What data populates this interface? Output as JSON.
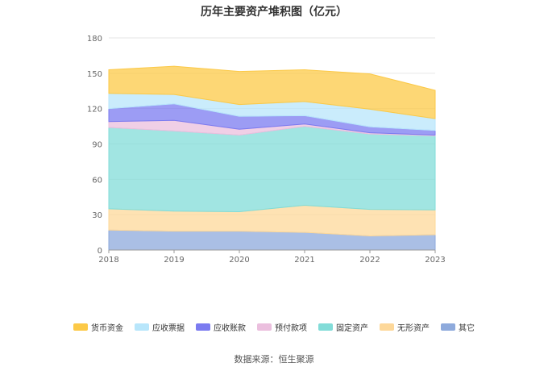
{
  "chart_data": {
    "type": "area",
    "stacked": true,
    "title": "历年主要资产堆积图（亿元）",
    "x": [
      "2018",
      "2019",
      "2020",
      "2021",
      "2022",
      "2023"
    ],
    "ylim": [
      0,
      180
    ],
    "yticks": [
      0,
      30,
      60,
      90,
      120,
      150,
      180
    ],
    "grid": true,
    "legend_position": "bottom",
    "series": [
      {
        "name": "其它",
        "color": "#8eaadc",
        "values": [
          17,
          16,
          16,
          15,
          12,
          13
        ]
      },
      {
        "name": "无形资产",
        "color": "#fdd89a",
        "values": [
          18,
          17,
          16.5,
          23,
          22.5,
          21
        ]
      },
      {
        "name": "固定资产",
        "color": "#82dcd8",
        "values": [
          69,
          68,
          65,
          67,
          64,
          63
        ]
      },
      {
        "name": "预付款项",
        "color": "#ebbfde",
        "values": [
          5,
          9,
          5,
          2,
          1,
          0.5
        ]
      },
      {
        "name": "应收账款",
        "color": "#7b7bf0",
        "values": [
          11,
          14,
          11,
          7,
          5,
          4
        ]
      },
      {
        "name": "应收票据",
        "color": "#b8e6fb",
        "values": [
          13,
          8,
          10,
          12,
          15,
          10
        ]
      },
      {
        "name": "货币资金",
        "color": "#fcc947",
        "values": [
          20,
          24,
          28,
          27,
          30,
          24
        ]
      }
    ],
    "legend_order": [
      "货币资金",
      "应收票据",
      "应收账款",
      "预付款项",
      "固定资产",
      "无形资产",
      "其它"
    ]
  },
  "source_note": "数据来源：恒生聚源"
}
